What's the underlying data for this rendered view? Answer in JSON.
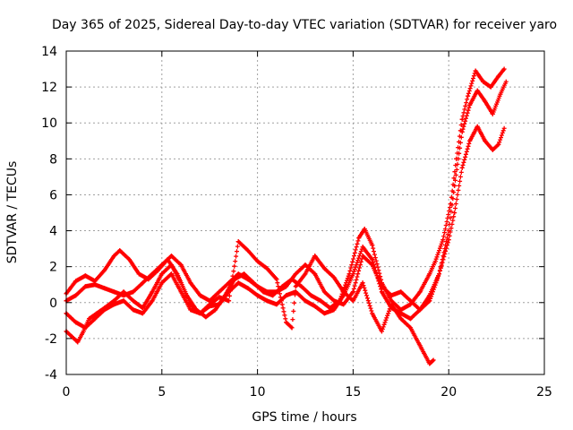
{
  "chart_data": {
    "type": "scatter",
    "title": "Day 365 of 2025, Sidereal Day-to-day VTEC variation (SDTVAR) for receiver yaro",
    "xlabel": "GPS time / hours",
    "ylabel": "SDTVAR / TECUs",
    "xlim": [
      0,
      25
    ],
    "ylim": [
      -4,
      14
    ],
    "xticks": [
      "0",
      "5",
      "10",
      "15",
      "20",
      "25"
    ],
    "yticks": [
      "-4",
      "-2",
      "0",
      "2",
      "4",
      "6",
      "8",
      "10",
      "12",
      "14"
    ],
    "grid": true,
    "marker": "plus",
    "series": [
      {
        "name": "trace-1",
        "color": "#ff0000",
        "points": [
          [
            0,
            0.5
          ],
          [
            0.5,
            1.2
          ],
          [
            1,
            1.5
          ],
          [
            1.5,
            1.2
          ],
          [
            2,
            1.8
          ],
          [
            2.5,
            2.6
          ],
          [
            2.8,
            2.9
          ],
          [
            3.3,
            2.4
          ],
          [
            3.8,
            1.6
          ],
          [
            4.3,
            1.3
          ],
          [
            4.8,
            1.8
          ],
          [
            5.3,
            2.4
          ],
          [
            5.8,
            1.6
          ],
          [
            6.3,
            0.4
          ],
          [
            6.8,
            -0.4
          ],
          [
            7.3,
            -0.8
          ],
          [
            7.8,
            -0.4
          ],
          [
            8.3,
            0.4
          ],
          [
            8.8,
            1.3
          ],
          [
            9.3,
            1.6
          ],
          [
            9.8,
            1.1
          ],
          [
            10.3,
            0.6
          ],
          [
            10.8,
            0.4
          ],
          [
            11.3,
            0.9
          ],
          [
            11.8,
            1.3
          ],
          [
            12.3,
            0.9
          ],
          [
            12.8,
            0.4
          ],
          [
            13.3,
            0.1
          ],
          [
            13.8,
            -0.3
          ],
          [
            14.3,
            0.1
          ],
          [
            14.8,
            1.6
          ],
          [
            15.3,
            3.6
          ],
          [
            15.6,
            4.1
          ],
          [
            16,
            3.2
          ],
          [
            16.5,
            1.1
          ],
          [
            17,
            0.1
          ],
          [
            17.5,
            -0.4
          ],
          [
            18,
            -0.1
          ],
          [
            18.5,
            0.6
          ],
          [
            19,
            1.6
          ],
          [
            19.3,
            2.3
          ],
          [
            19.7,
            3.5
          ],
          [
            20.1,
            5.5
          ],
          [
            20.4,
            8.0
          ],
          [
            20.7,
            10.2
          ],
          [
            21,
            11.5
          ],
          [
            21.4,
            12.9
          ],
          [
            21.8,
            12.3
          ],
          [
            22.2,
            12.0
          ],
          [
            22.6,
            12.6
          ],
          [
            22.9,
            13.0
          ]
        ]
      },
      {
        "name": "trace-2",
        "color": "#ff0000",
        "points": [
          [
            0,
            0.1
          ],
          [
            0.5,
            0.4
          ],
          [
            1,
            0.9
          ],
          [
            1.5,
            1.0
          ],
          [
            2,
            0.8
          ],
          [
            2.5,
            0.6
          ],
          [
            3,
            0.4
          ],
          [
            3.5,
            0.6
          ],
          [
            4,
            1.1
          ],
          [
            4.5,
            1.6
          ],
          [
            5,
            2.1
          ],
          [
            5.5,
            2.6
          ],
          [
            6,
            2.1
          ],
          [
            6.5,
            1.1
          ],
          [
            7,
            0.4
          ],
          [
            7.5,
            0.1
          ],
          [
            8,
            0.6
          ],
          [
            8.5,
            1.1
          ],
          [
            9,
            1.6
          ],
          [
            9.5,
            1.3
          ],
          [
            10,
            0.9
          ],
          [
            10.5,
            0.6
          ],
          [
            11,
            0.6
          ],
          [
            11.5,
            0.9
          ],
          [
            12,
            1.6
          ],
          [
            12.5,
            2.1
          ],
          [
            13,
            1.6
          ],
          [
            13.5,
            0.6
          ],
          [
            14,
            0.1
          ],
          [
            14.5,
            -0.1
          ],
          [
            15,
            0.6
          ],
          [
            15.5,
            2.6
          ],
          [
            16,
            2.1
          ],
          [
            16.5,
            0.9
          ],
          [
            17,
            0.4
          ],
          [
            17.5,
            0.6
          ],
          [
            18,
            0.1
          ],
          [
            18.5,
            -0.4
          ],
          [
            19,
            0.1
          ],
          [
            19.5,
            1.6
          ],
          [
            20,
            4.0
          ],
          [
            20.3,
            6.5
          ],
          [
            20.7,
            9.5
          ],
          [
            21.1,
            11.0
          ],
          [
            21.5,
            11.8
          ],
          [
            21.9,
            11.2
          ],
          [
            22.3,
            10.5
          ],
          [
            22.7,
            11.6
          ],
          [
            23,
            12.3
          ]
        ]
      },
      {
        "name": "trace-3",
        "color": "#ff0000",
        "points": [
          [
            0,
            -1.6
          ],
          [
            0.3,
            -1.9
          ],
          [
            0.6,
            -2.2
          ],
          [
            0.9,
            -1.6
          ],
          [
            1.2,
            -0.9
          ],
          [
            1.6,
            -0.6
          ],
          [
            2,
            -0.3
          ],
          [
            2.5,
            0.1
          ],
          [
            3,
            0.6
          ],
          [
            3.5,
            0.1
          ],
          [
            4,
            -0.3
          ],
          [
            4.5,
            0.6
          ],
          [
            5,
            1.6
          ],
          [
            5.5,
            2.1
          ],
          [
            6,
            1.1
          ],
          [
            6.5,
            -0.1
          ],
          [
            7,
            -0.6
          ],
          [
            7.5,
            -0.1
          ],
          [
            8,
            0.3
          ],
          [
            8.5,
            0.1
          ],
          [
            9,
            3.4
          ],
          [
            9.5,
            2.9
          ],
          [
            10,
            2.3
          ],
          [
            10.5,
            1.9
          ],
          [
            11,
            1.3
          ],
          [
            11.5,
            -1.1
          ],
          [
            11.8,
            -1.4
          ],
          [
            12,
            0.9
          ],
          [
            12.5,
            1.6
          ],
          [
            13,
            2.6
          ],
          [
            13.5,
            1.9
          ],
          [
            14,
            1.4
          ],
          [
            14.5,
            0.6
          ],
          [
            15,
            0.1
          ],
          [
            15.5,
            1.1
          ],
          [
            16,
            -0.6
          ],
          [
            16.5,
            -1.6
          ],
          [
            17,
            -0.1
          ],
          [
            17.5,
            -0.9
          ],
          [
            18,
            -1.4
          ],
          [
            18.5,
            -2.4
          ],
          [
            19,
            -3.4
          ],
          [
            19.2,
            -3.2
          ]
        ]
      },
      {
        "name": "trace-4",
        "color": "#ff0000",
        "points": [
          [
            0,
            -0.6
          ],
          [
            0.5,
            -1.1
          ],
          [
            1,
            -1.4
          ],
          [
            1.5,
            -0.9
          ],
          [
            2,
            -0.4
          ],
          [
            2.5,
            -0.1
          ],
          [
            3,
            0.1
          ],
          [
            3.5,
            -0.4
          ],
          [
            4,
            -0.6
          ],
          [
            4.5,
            0.1
          ],
          [
            5,
            1.1
          ],
          [
            5.5,
            1.6
          ],
          [
            6,
            0.6
          ],
          [
            6.5,
            -0.4
          ],
          [
            7,
            -0.6
          ],
          [
            7.5,
            -0.2
          ],
          [
            8,
            -0.1
          ],
          [
            8.5,
            0.6
          ],
          [
            9,
            1.1
          ],
          [
            9.5,
            0.8
          ],
          [
            10,
            0.4
          ],
          [
            10.5,
            0.1
          ],
          [
            11,
            -0.1
          ],
          [
            11.5,
            0.4
          ],
          [
            12,
            0.6
          ],
          [
            12.5,
            0.1
          ],
          [
            13,
            -0.2
          ],
          [
            13.5,
            -0.6
          ],
          [
            14,
            -0.4
          ],
          [
            14.5,
            0.4
          ],
          [
            15,
            1.6
          ],
          [
            15.5,
            3.1
          ],
          [
            16,
            2.4
          ],
          [
            16.5,
            0.6
          ],
          [
            17,
            -0.3
          ],
          [
            17.5,
            -0.6
          ],
          [
            18,
            -0.9
          ],
          [
            18.5,
            -0.4
          ],
          [
            19,
            0.4
          ],
          [
            19.5,
            1.6
          ],
          [
            20,
            3.5
          ],
          [
            20.3,
            5.0
          ],
          [
            20.7,
            7.5
          ],
          [
            21.1,
            9.0
          ],
          [
            21.5,
            9.8
          ],
          [
            21.9,
            9.0
          ],
          [
            22.3,
            8.5
          ],
          [
            22.6,
            8.8
          ],
          [
            22.9,
            9.7
          ]
        ]
      }
    ]
  }
}
